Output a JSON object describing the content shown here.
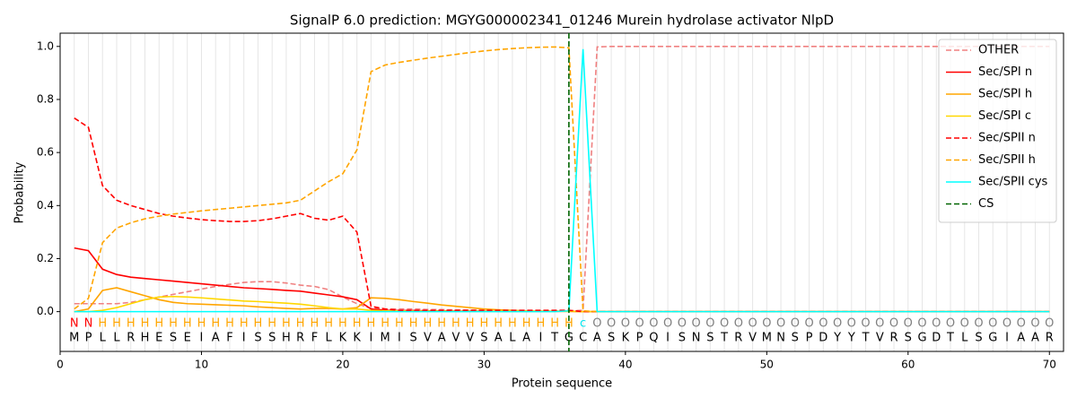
{
  "chart_data": {
    "type": "line",
    "title": "SignalP 6.0 prediction: MGYG000002341_01246 Murein hydrolase activator NlpD",
    "xlabel": "Protein sequence",
    "ylabel": "Probability",
    "xlim": [
      0,
      71
    ],
    "ylim": [
      -0.15,
      1.05
    ],
    "xticks": [
      0,
      10,
      20,
      30,
      40,
      50,
      60,
      70
    ],
    "yticks": [
      {
        "value": 0,
        "label": "0.0"
      },
      {
        "value": 0.2,
        "label": "0.2"
      },
      {
        "value": 0.4,
        "label": "0.4"
      },
      {
        "value": 0.6,
        "label": "0.6"
      },
      {
        "value": 0.8,
        "label": "0.8"
      },
      {
        "value": 1,
        "label": "1.0"
      }
    ],
    "legend": "upper right",
    "grid": "x",
    "x": [
      1,
      2,
      3,
      4,
      5,
      6,
      7,
      8,
      9,
      10,
      11,
      12,
      13,
      14,
      15,
      16,
      17,
      18,
      19,
      20,
      21,
      22,
      23,
      24,
      25,
      26,
      27,
      28,
      29,
      30,
      31,
      32,
      33,
      34,
      35,
      36,
      37,
      38,
      39,
      40,
      41,
      42,
      43,
      44,
      45,
      46,
      47,
      48,
      49,
      50,
      51,
      52,
      53,
      54,
      55,
      56,
      57,
      58,
      59,
      60,
      61,
      62,
      63,
      64,
      65,
      66,
      67,
      68,
      69,
      70
    ],
    "residues": [
      "M",
      "P",
      "L",
      "L",
      "R",
      "H",
      "E",
      "S",
      "E",
      "I",
      "A",
      "F",
      "I",
      "S",
      "S",
      "H",
      "R",
      "F",
      "L",
      "K",
      "K",
      "I",
      "M",
      "I",
      "S",
      "V",
      "A",
      "V",
      "V",
      "S",
      "A",
      "L",
      "A",
      "I",
      "T",
      "G",
      "C",
      "A",
      "S",
      "K",
      "P",
      "Q",
      "I",
      "S",
      "N",
      "S",
      "T",
      "R",
      "V",
      "M",
      "N",
      "S",
      "P",
      "D",
      "Y",
      "Y",
      "T",
      "V",
      "R",
      "S",
      "G",
      "D",
      "T",
      "L",
      "S",
      "G",
      "I",
      "A",
      "A",
      "R"
    ],
    "regions": [
      "N",
      "N",
      "H",
      "H",
      "H",
      "H",
      "H",
      "H",
      "H",
      "H",
      "H",
      "H",
      "H",
      "H",
      "H",
      "H",
      "H",
      "H",
      "H",
      "H",
      "H",
      "H",
      "H",
      "H",
      "H",
      "H",
      "H",
      "H",
      "H",
      "H",
      "H",
      "H",
      "H",
      "H",
      "H",
      "H",
      "c",
      "O",
      "O",
      "O",
      "O",
      "O",
      "O",
      "O",
      "O",
      "O",
      "O",
      "O",
      "O",
      "O",
      "O",
      "O",
      "O",
      "O",
      "O",
      "O",
      "O",
      "O",
      "O",
      "O",
      "O",
      "O",
      "O",
      "O",
      "O",
      "O",
      "O",
      "O",
      "O",
      "O"
    ],
    "region_colors": {
      "N": "#ff0000",
      "H": "#ffa500",
      "c": "#00e5ee",
      "O": "#808080"
    },
    "series": [
      {
        "name": "OTHER",
        "color": "#f08080",
        "dash": true,
        "values": [
          0.03,
          0.03,
          0.03,
          0.03,
          0.035,
          0.045,
          0.055,
          0.065,
          0.075,
          0.085,
          0.095,
          0.103,
          0.11,
          0.113,
          0.113,
          0.108,
          0.1,
          0.095,
          0.083,
          0.055,
          0.03,
          0.012,
          0.01,
          0.01,
          0.01,
          0.008,
          0.008,
          0.006,
          0.006,
          0.005,
          0.005,
          0.004,
          0.004,
          0.003,
          0.003,
          0.003,
          0.005,
          0.998,
          1,
          1,
          1,
          1,
          1,
          1,
          1,
          1,
          1,
          1,
          1,
          1,
          1,
          1,
          1,
          1,
          1,
          1,
          1,
          1,
          1,
          1,
          1,
          1,
          1,
          1,
          1,
          1,
          1,
          1,
          1,
          1
        ]
      },
      {
        "name": "Sec/SPI n",
        "color": "#ff0000",
        "dash": false,
        "values": [
          0.24,
          0.23,
          0.16,
          0.14,
          0.13,
          0.125,
          0.12,
          0.115,
          0.11,
          0.105,
          0.1,
          0.095,
          0.09,
          0.087,
          0.084,
          0.08,
          0.077,
          0.07,
          0.063,
          0.056,
          0.045,
          0.01,
          0.005,
          0.004,
          0.004,
          0.003,
          0.003,
          0.002,
          0.002,
          0.002,
          0.001,
          0.001,
          0.001,
          0.001,
          0.001,
          0.001,
          0,
          0,
          0,
          0,
          0,
          0,
          0,
          0,
          0,
          0,
          0,
          0,
          0,
          0,
          0,
          0,
          0,
          0,
          0,
          0,
          0,
          0,
          0,
          0,
          0,
          0,
          0,
          0,
          0,
          0,
          0,
          0,
          0,
          0
        ]
      },
      {
        "name": "Sec/SPI h",
        "color": "#ffa500",
        "dash": false,
        "values": [
          0,
          0.01,
          0.08,
          0.09,
          0.075,
          0.06,
          0.045,
          0.035,
          0.03,
          0.028,
          0.026,
          0.024,
          0.022,
          0.018,
          0.015,
          0.012,
          0.01,
          0.012,
          0.012,
          0.01,
          0.015,
          0.052,
          0.05,
          0.045,
          0.038,
          0.032,
          0.025,
          0.02,
          0.015,
          0.01,
          0.007,
          0.005,
          0.003,
          0.002,
          0.002,
          0.002,
          0,
          0,
          0,
          0,
          0,
          0,
          0,
          0,
          0,
          0,
          0,
          0,
          0,
          0,
          0,
          0,
          0,
          0,
          0,
          0,
          0,
          0,
          0,
          0,
          0,
          0,
          0,
          0,
          0,
          0,
          0,
          0,
          0,
          0
        ]
      },
      {
        "name": "Sec/SPI c",
        "color": "#ffd700",
        "dash": false,
        "values": [
          0,
          0,
          0.005,
          0.015,
          0.03,
          0.045,
          0.055,
          0.057,
          0.055,
          0.052,
          0.048,
          0.044,
          0.04,
          0.038,
          0.035,
          0.032,
          0.028,
          0.022,
          0.015,
          0.01,
          0.01,
          0.005,
          0.003,
          0.003,
          0.002,
          0.002,
          0.002,
          0.001,
          0.001,
          0.001,
          0.001,
          0.001,
          0.001,
          0.001,
          0.001,
          0.001,
          0,
          0,
          0,
          0,
          0,
          0,
          0,
          0,
          0,
          0,
          0,
          0,
          0,
          0,
          0,
          0,
          0,
          0,
          0,
          0,
          0,
          0,
          0,
          0,
          0,
          0,
          0,
          0,
          0,
          0,
          0,
          0,
          0,
          0
        ]
      },
      {
        "name": "Sec/SPII n",
        "color": "#ff0000",
        "dash": true,
        "values": [
          0.73,
          0.695,
          0.475,
          0.42,
          0.4,
          0.385,
          0.37,
          0.36,
          0.353,
          0.347,
          0.343,
          0.34,
          0.34,
          0.343,
          0.35,
          0.36,
          0.37,
          0.352,
          0.345,
          0.36,
          0.3,
          0.02,
          0.01,
          0.005,
          0.005,
          0.005,
          0.005,
          0.005,
          0.005,
          0.005,
          0.005,
          0.005,
          0.005,
          0.005,
          0.005,
          0.005,
          0,
          0,
          0,
          0,
          0,
          0,
          0,
          0,
          0,
          0,
          0,
          0,
          0,
          0,
          0,
          0,
          0,
          0,
          0,
          0,
          0,
          0,
          0,
          0,
          0,
          0,
          0,
          0,
          0,
          0,
          0,
          0,
          0,
          0
        ]
      },
      {
        "name": "Sec/SPII h",
        "color": "#ffa500",
        "dash": true,
        "values": [
          0.01,
          0.05,
          0.26,
          0.315,
          0.335,
          0.35,
          0.36,
          0.368,
          0.374,
          0.38,
          0.385,
          0.39,
          0.395,
          0.4,
          0.405,
          0.41,
          0.42,
          0.455,
          0.49,
          0.52,
          0.61,
          0.905,
          0.93,
          0.94,
          0.948,
          0.956,
          0.963,
          0.97,
          0.977,
          0.983,
          0.988,
          0.992,
          0.995,
          0.997,
          0.998,
          0.995,
          0.003,
          0,
          0,
          0,
          0,
          0,
          0,
          0,
          0,
          0,
          0,
          0,
          0,
          0,
          0,
          0,
          0,
          0,
          0,
          0,
          0,
          0,
          0,
          0,
          0,
          0,
          0,
          0,
          0,
          0,
          0,
          0,
          0,
          0
        ]
      },
      {
        "name": "Sec/SPII cys",
        "color": "#00ffff",
        "dash": false,
        "values": [
          0,
          0,
          0,
          0,
          0,
          0,
          0,
          0,
          0,
          0,
          0,
          0,
          0,
          0,
          0,
          0,
          0,
          0,
          0,
          0,
          0,
          0,
          0,
          0,
          0,
          0,
          0,
          0,
          0,
          0,
          0,
          0,
          0,
          0,
          0,
          0.003,
          0.99,
          0,
          0,
          0,
          0,
          0,
          0,
          0,
          0,
          0,
          0,
          0,
          0,
          0,
          0,
          0,
          0,
          0,
          0,
          0,
          0,
          0,
          0,
          0,
          0,
          0,
          0,
          0,
          0,
          0,
          0,
          0,
          0,
          0
        ]
      }
    ],
    "vlines": [
      {
        "name": "CS",
        "color": "#006400",
        "dash": true,
        "x": 36
      }
    ]
  }
}
